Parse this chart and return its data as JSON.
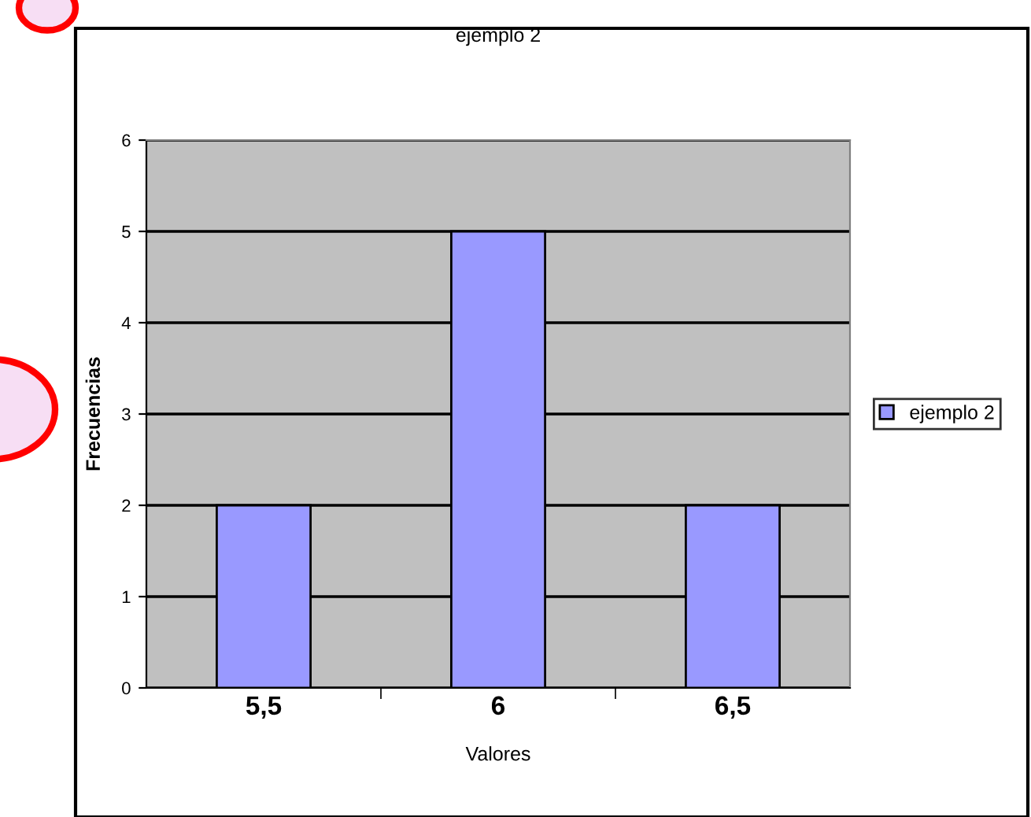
{
  "chart_data": {
    "type": "bar",
    "title": "ejemplo 2",
    "xlabel": "Valores",
    "ylabel": "Frecuencias",
    "categories": [
      "5,5",
      "6",
      "6,5"
    ],
    "series": [
      {
        "name": "ejemplo 2",
        "color": "#9999ff",
        "values": [
          2,
          5,
          2
        ]
      }
    ],
    "ylim": [
      0,
      6
    ],
    "yticks": [
      0,
      1,
      2,
      3,
      4,
      5,
      6
    ],
    "grid": "y",
    "legend": "right"
  }
}
